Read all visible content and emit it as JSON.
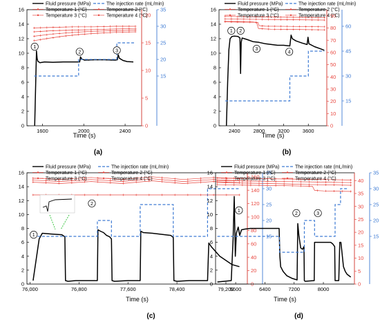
{
  "colors": {
    "pressure": "#000000",
    "rate": "#3d7ad3",
    "temp": "#e8473f",
    "axis": "#000000"
  },
  "legend": {
    "pressure": "Fluid pressure (MPa)",
    "rate": "The injection rate (mL/min)",
    "t1": "Temperature 1 (°C)",
    "t2": "Temperature 2 (°C)",
    "t3": "Temperature 3 (°C)",
    "t4": "Temperature 4 (°C)"
  },
  "chart_data": [
    {
      "type": "line",
      "panel": "(a)",
      "xlabel": "Time (s)",
      "xlim": [
        1450,
        2560
      ],
      "xticks": [
        1600,
        2000,
        2400
      ],
      "xticklabels": [
        "1600",
        "2000",
        "2400"
      ],
      "ylim_left": [
        0,
        16
      ],
      "yticks_left": [
        0,
        2,
        4,
        6,
        8,
        10,
        12,
        14,
        16
      ],
      "ylim_temp": [
        0,
        21
      ],
      "yticks_temp": [
        0,
        5,
        10,
        15,
        20
      ],
      "ylim_rate": [
        0,
        35
      ],
      "yticks_rate": [
        15,
        20,
        25,
        30,
        35
      ],
      "series": [
        {
          "name": "Fluid pressure (MPa)",
          "axis": "left",
          "x": [
            1525,
            1535,
            1542,
            1548,
            1555,
            1575,
            1620,
            1700,
            1800,
            1900,
            1960,
            1968,
            1980,
            2010,
            2100,
            2200,
            2300,
            2325,
            2333,
            2345,
            2380,
            2420,
            2480
          ],
          "y": [
            0,
            6,
            10.3,
            9.3,
            8.9,
            8.7,
            8.8,
            8.75,
            8.8,
            8.8,
            8.8,
            9.5,
            9.2,
            9.05,
            9.1,
            9.1,
            9.05,
            9.1,
            9.8,
            9.3,
            9.0,
            8.85,
            8.8
          ]
        },
        {
          "name": "The injection rate (mL/min)",
          "axis": "rate",
          "x": [
            1520,
            1950,
            1950,
            2320,
            2320,
            2500
          ],
          "y": [
            15,
            15,
            20,
            20,
            25,
            25
          ]
        },
        {
          "name": "Temperature 1 (°C)",
          "axis": "temp",
          "x": [
            1520,
            1700,
            1900,
            2100,
            2300,
            2500
          ],
          "y": [
            17.7,
            17.8,
            17.9,
            17.9,
            18.0,
            18.0
          ]
        },
        {
          "name": "Temperature 2 (°C)",
          "axis": "temp",
          "x": [
            1520,
            1700,
            1900,
            2100,
            2300,
            2500
          ],
          "y": [
            17.0,
            17.2,
            17.3,
            17.4,
            17.5,
            17.6
          ]
        },
        {
          "name": "Temperature 3 (°C)",
          "axis": "temp",
          "x": [
            1520,
            1700,
            1900,
            2100,
            2300,
            2500
          ],
          "y": [
            16.2,
            16.6,
            16.9,
            17.1,
            17.2,
            17.3
          ]
        },
        {
          "name": "Temperature 4 (°C)",
          "axis": "temp",
          "x": [
            1520,
            1650,
            1800,
            1950,
            2100,
            2300,
            2500
          ],
          "y": [
            15.4,
            15.8,
            16.2,
            16.5,
            16.7,
            16.9,
            17.0
          ]
        }
      ],
      "annotations": [
        {
          "text": "1",
          "x": 1525,
          "y": 10.9
        },
        {
          "text": "2",
          "x": 1960,
          "y": 10.2
        },
        {
          "text": "3",
          "x": 2320,
          "y": 10.4
        }
      ]
    },
    {
      "type": "line",
      "panel": "(b)",
      "xlabel": "Time (s)",
      "xlim": [
        2150,
        3900
      ],
      "xticks": [
        2400,
        2800,
        3200,
        3600
      ],
      "xticklabels": [
        "2400",
        "2800",
        "3200",
        "3600"
      ],
      "ylim_left": [
        0,
        16
      ],
      "yticks_left": [
        0,
        2,
        4,
        6,
        8,
        10,
        12,
        14,
        16
      ],
      "ylim_temp": [
        0,
        95
      ],
      "yticks_temp": [
        0,
        10,
        20,
        30,
        40,
        50,
        60,
        70,
        80,
        90
      ],
      "ylim_rate": [
        0,
        70
      ],
      "yticks_rate": [
        15,
        30,
        45,
        60
      ],
      "series": [
        {
          "name": "Fluid pressure (MPa)",
          "axis": "left",
          "x": [
            2270,
            2290,
            2310,
            2330,
            2360,
            2400,
            2460,
            2490,
            2500,
            2510,
            2525,
            2600,
            2700,
            2800,
            2900,
            3000,
            3100,
            3200,
            3300,
            3320,
            3340,
            3400,
            3500,
            3580,
            3595,
            3610,
            3700,
            3800,
            3860
          ],
          "y": [
            0,
            6,
            10.5,
            12,
            12.3,
            12.35,
            12.3,
            12.1,
            7.2,
            11.5,
            12.1,
            11.9,
            11.6,
            11.5,
            11.3,
            11.2,
            11.1,
            11.1,
            11.0,
            12.5,
            12.0,
            11.7,
            11.4,
            11.2,
            12.2,
            11.3,
            10.9,
            10.6,
            10.4
          ]
        },
        {
          "name": "The injection rate (mL/min)",
          "axis": "rate",
          "x": [
            2250,
            3300,
            3300,
            3600,
            3600,
            3860
          ],
          "y": [
            15,
            15,
            30,
            30,
            45,
            45
          ]
        },
        {
          "name": "Temperature 1 (°C)",
          "axis": "temp",
          "x": [
            2250,
            2600,
            3000,
            3400,
            3860
          ],
          "y": [
            89.5,
            89.2,
            89.0,
            88.8,
            88.6
          ]
        },
        {
          "name": "Temperature 2 (°C)",
          "axis": "temp",
          "x": [
            2250,
            2600,
            2900,
            3300,
            3860
          ],
          "y": [
            87.5,
            87.2,
            87.0,
            86.8,
            86.5
          ]
        },
        {
          "name": "Temperature 3 (°C)",
          "axis": "temp",
          "x": [
            2250,
            2600,
            2780,
            2800,
            2900,
            3300,
            3860
          ],
          "y": [
            85.0,
            84.8,
            84.6,
            82.0,
            81.5,
            81.3,
            81.0
          ]
        },
        {
          "name": "Temperature 4 (°C)",
          "axis": "temp",
          "x": [
            2250,
            2700,
            2760,
            2790,
            3000,
            3400,
            3860
          ],
          "y": [
            85.5,
            85.0,
            84.5,
            79.5,
            79.0,
            78.8,
            78.5
          ]
        }
      ],
      "annotations": [
        {
          "text": "1",
          "x": 2350,
          "y": 13.1
        },
        {
          "text": "2",
          "x": 2500,
          "y": 13.1
        },
        {
          "text": "3",
          "x": 2760,
          "y": 10.6
        },
        {
          "text": "4",
          "x": 3290,
          "y": 10.2
        }
      ]
    },
    {
      "type": "line",
      "panel": "(c)",
      "xlabel": "Time (s)",
      "xlim": [
        75950,
        79550
      ],
      "xticks": [
        76000,
        76800,
        77600,
        78400,
        79200
      ],
      "xticklabels": [
        "76,000",
        "76,800",
        "77,600",
        "78,400",
        "79,200"
      ],
      "ylim_left": [
        0,
        16
      ],
      "yticks_left": [
        0,
        2,
        4,
        6,
        8,
        10,
        12,
        14,
        16
      ],
      "ylim_temp": [
        0,
        166
      ],
      "yticks_temp": [
        0,
        20,
        40,
        60,
        80,
        100,
        120,
        140,
        160
      ],
      "ylim_rate": [
        0,
        35
      ],
      "yticks_rate": [
        15,
        20,
        25,
        30,
        35
      ],
      "series": [
        {
          "name": "Fluid pressure (MPa)",
          "axis": "left",
          "x": [
            76050,
            76150,
            76200,
            76350,
            76520,
            76570,
            76580,
            76620,
            76750,
            77000,
            77100,
            77110,
            77150,
            77200,
            77250,
            77300,
            77330,
            77340,
            77380,
            77600,
            77800,
            77810,
            77850,
            78000,
            78300,
            78340,
            78350,
            78400,
            78600,
            78800,
            78900,
            78920,
            78960,
            79100,
            79300,
            79420
          ],
          "y": [
            0.5,
            6.5,
            7.3,
            7.2,
            7.1,
            6.8,
            0.5,
            0.4,
            0.5,
            0.5,
            0.5,
            7.8,
            7.6,
            7.4,
            7.0,
            6.8,
            6.5,
            0.5,
            0.4,
            0.5,
            0.5,
            7.6,
            7.4,
            7.3,
            7.0,
            6.7,
            0.5,
            0.4,
            0.5,
            0.5,
            0.5,
            5.9,
            5.4,
            4.0,
            2.8,
            2.5
          ]
        },
        {
          "name": "The injection rate (mL/min)",
          "axis": "rate",
          "x": [
            76050,
            77100,
            77100,
            77330,
            77330,
            77800,
            77800,
            78340,
            78340,
            78900,
            78900,
            79420
          ],
          "y": [
            15,
            15,
            20,
            20,
            15,
            15,
            25,
            25,
            15,
            15,
            30,
            30
          ]
        },
        {
          "name": "Temperature 1 (°C)",
          "axis": "temp",
          "x": [
            76050,
            76500,
            77000,
            77500,
            78000,
            78500,
            79000,
            79420
          ],
          "y": [
            158,
            156,
            159,
            156,
            160,
            156,
            159,
            157
          ]
        },
        {
          "name": "Temperature 2 (°C)",
          "axis": "temp",
          "x": [
            76050,
            76500,
            77000,
            77500,
            78000,
            78500,
            79000,
            79420
          ],
          "y": [
            155,
            153,
            156,
            153,
            157,
            153,
            156,
            154
          ]
        },
        {
          "name": "Temperature 3 (°C)",
          "axis": "temp",
          "x": [
            76050,
            76500,
            77000,
            77500,
            78000,
            78500,
            79000,
            79420
          ],
          "y": [
            152,
            150,
            153,
            150,
            154,
            150,
            153,
            151
          ]
        },
        {
          "name": "Temperature 4 (°C)",
          "axis": "temp",
          "x": [
            76050,
            76800,
            77600,
            78400,
            79420
          ],
          "y": [
            133,
            133,
            133,
            133,
            133
          ]
        }
      ],
      "annotations": [
        {
          "text": "1",
          "x": 76060,
          "y": 7.1
        },
        {
          "text": "2",
          "x": 77010,
          "y": 11.6
        }
      ]
    },
    {
      "type": "line",
      "panel": "(d)",
      "xlabel": "Time (s)",
      "xlim": [
        5050,
        8850
      ],
      "xticks": [
        5600,
        6400,
        7200,
        8000
      ],
      "xticklabels": [
        "5600",
        "6400",
        "7200",
        "8000"
      ],
      "ylim_left": [
        0,
        16
      ],
      "yticks_left": [
        0,
        2,
        4,
        6,
        8,
        10,
        12,
        14,
        16
      ],
      "ylim_temp": [
        0,
        43
      ],
      "yticks_temp": [
        0,
        5,
        10,
        15,
        20,
        25,
        30,
        35,
        40
      ],
      "ylim_rate": [
        0,
        35
      ],
      "yticks_rate": [
        15,
        20,
        25,
        30,
        35
      ],
      "series": [
        {
          "name": "Fluid pressure (MPa)",
          "axis": "left",
          "x": [
            5100,
            5480,
            5530,
            5560,
            5590,
            5620,
            5670,
            5710,
            5760,
            5850,
            6000,
            6400,
            6790,
            6810,
            6830,
            6900,
            7000,
            7150,
            7280,
            7300,
            7330,
            7380,
            7430,
            7470,
            7480,
            7500,
            7750,
            7760,
            7900,
            8200,
            8250,
            8310,
            8320,
            8360,
            8420,
            8450,
            8480,
            8500,
            8550,
            8600,
            8650,
            8750
          ],
          "y": [
            0.3,
            0.5,
            6.5,
            12.6,
            4.0,
            7.3,
            8.2,
            7.0,
            7.8,
            7.9,
            8.0,
            8.0,
            8.0,
            4.0,
            2.5,
            1.8,
            1.2,
            0.8,
            0.6,
            8.7,
            7.0,
            5.2,
            5.0,
            5.4,
            0.5,
            0.4,
            0.5,
            6.0,
            6.0,
            6.0,
            5.8,
            5.4,
            0.5,
            0.5,
            0.5,
            6.0,
            6.0,
            5.0,
            2.5,
            1.8,
            1.4,
            1.0
          ]
        },
        {
          "name": "The injection rate (mL/min)",
          "axis": "rate",
          "x": [
            5100,
            6800,
            6800,
            7480,
            7480,
            7760,
            7760,
            8320,
            8320,
            8470,
            8470,
            8650
          ],
          "y": [
            15,
            15,
            10,
            10,
            20,
            20,
            15,
            15,
            25,
            25,
            30,
            30
          ]
        },
        {
          "name": "Temperature 1 (°C)",
          "axis": "temp",
          "x": [
            5100,
            6000,
            7000,
            8000,
            8750
          ],
          "y": [
            41.0,
            40.8,
            40.6,
            40.4,
            40.2
          ]
        },
        {
          "name": "Temperature 2 (°C)",
          "axis": "temp",
          "x": [
            5100,
            6000,
            7000,
            8000,
            8750
          ],
          "y": [
            40.0,
            39.8,
            39.6,
            39.4,
            39.2
          ]
        },
        {
          "name": "Temperature 3 (°C)",
          "axis": "temp",
          "x": [
            5100,
            6000,
            7000,
            7800,
            8750
          ],
          "y": [
            39.2,
            39.0,
            38.7,
            38.4,
            38.2
          ]
        },
        {
          "name": "Temperature 4 (°C)",
          "axis": "temp",
          "x": [
            5100,
            6000,
            7000,
            7700,
            7760,
            8000,
            8750
          ],
          "y": [
            38.4,
            38.2,
            38.0,
            37.8,
            36.2,
            36.0,
            35.8
          ]
        }
      ],
      "annotations": [
        {
          "text": "1",
          "x": 5690,
          "y": 10.6
        },
        {
          "text": "2",
          "x": 7260,
          "y": 10.2
        },
        {
          "text": "3",
          "x": 7850,
          "y": 10.2
        }
      ]
    }
  ]
}
